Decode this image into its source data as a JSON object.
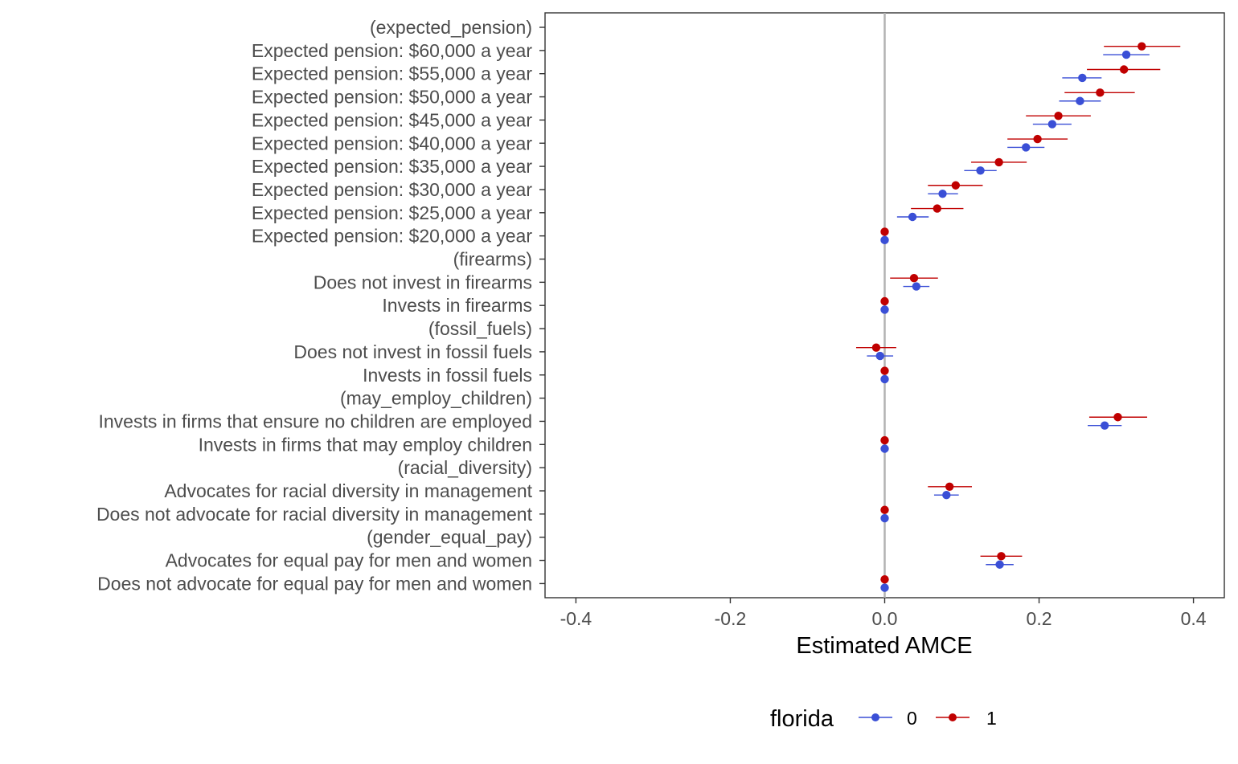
{
  "chart_data": {
    "type": "scatter",
    "subtype": "coefficient-plot-with-error-bars",
    "xlabel": "Estimated AMCE",
    "xlim": [
      -0.44,
      0.44
    ],
    "x_ticks": [
      -0.4,
      -0.2,
      0.0,
      0.2,
      0.4
    ],
    "x_tick_labels": [
      "-0.4",
      "-0.2",
      "0.0",
      "0.2",
      "0.4"
    ],
    "reference_line": 0.0,
    "grid": false,
    "legend": {
      "title": "florida",
      "position": "bottom"
    },
    "categories": [
      "(expected_pension)",
      "Expected pension: $60,000 a year",
      "Expected pension: $55,000 a year",
      "Expected pension: $50,000 a year",
      "Expected pension: $45,000 a year",
      "Expected pension: $40,000 a year",
      "Expected pension: $35,000 a year",
      "Expected pension: $30,000 a year",
      "Expected pension: $25,000 a year",
      "Expected pension: $20,000 a year",
      "(firearms)",
      "Does not invest in firearms",
      "Invests in firearms",
      "(fossil_fuels)",
      "Does not invest in fossil fuels",
      "Invests in fossil fuels",
      "(may_employ_children)",
      "Invests in firms that ensure no children are employed",
      "Invests in firms that may employ children",
      "(racial_diversity)",
      "Advocates for racial diversity in management",
      "Does not advocate for racial diversity in management",
      "(gender_equal_pay)",
      "Advocates for equal pay for men and women",
      "Does not advocate for equal pay for men and women"
    ],
    "series": [
      {
        "name": "0",
        "color": "#3a4fd6",
        "estimate": [
          null,
          0.313,
          0.256,
          0.253,
          0.217,
          0.183,
          0.124,
          0.075,
          0.036,
          0.0,
          null,
          0.041,
          0.0,
          null,
          -0.006,
          0.0,
          null,
          0.285,
          0.0,
          null,
          0.08,
          0.0,
          null,
          0.149,
          0.0
        ],
        "lower": [
          null,
          0.283,
          0.23,
          0.226,
          0.192,
          0.159,
          0.103,
          0.056,
          0.016,
          0.0,
          null,
          0.024,
          0.0,
          null,
          -0.023,
          0.0,
          null,
          0.263,
          0.0,
          null,
          0.064,
          0.0,
          null,
          0.131,
          0.0
        ],
        "upper": [
          null,
          0.343,
          0.281,
          0.28,
          0.242,
          0.207,
          0.145,
          0.095,
          0.057,
          0.0,
          null,
          0.058,
          0.0,
          null,
          0.011,
          0.0,
          null,
          0.307,
          0.0,
          null,
          0.096,
          0.0,
          null,
          0.167,
          0.0
        ]
      },
      {
        "name": "1",
        "color": "#c00000",
        "estimate": [
          null,
          0.333,
          0.31,
          0.279,
          0.225,
          0.198,
          0.148,
          0.092,
          0.068,
          0.0,
          null,
          0.038,
          0.0,
          null,
          -0.011,
          0.0,
          null,
          0.302,
          0.0,
          null,
          0.084,
          0.0,
          null,
          0.151,
          0.0
        ],
        "lower": [
          null,
          0.284,
          0.262,
          0.233,
          0.183,
          0.159,
          0.112,
          0.056,
          0.034,
          0.0,
          null,
          0.007,
          0.0,
          null,
          -0.037,
          0.0,
          null,
          0.265,
          0.0,
          null,
          0.056,
          0.0,
          null,
          0.124,
          0.0
        ],
        "upper": [
          null,
          0.383,
          0.357,
          0.324,
          0.267,
          0.237,
          0.184,
          0.127,
          0.102,
          0.0,
          null,
          0.069,
          0.0,
          null,
          0.015,
          0.0,
          null,
          0.34,
          0.0,
          null,
          0.113,
          0.0,
          null,
          0.178,
          0.0
        ]
      }
    ]
  }
}
